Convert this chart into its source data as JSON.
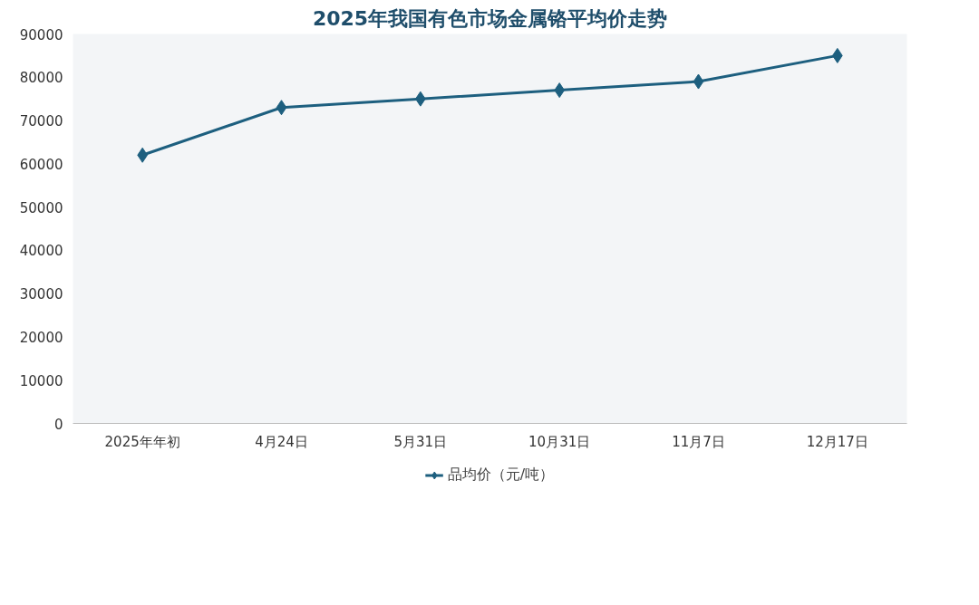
{
  "chart_data": {
    "type": "line",
    "title": "2025年我国有色市场金属铬平均价走势",
    "categories": [
      "2025年年初",
      "4月24日",
      "5月31日",
      "10月31日",
      "11月7日",
      "12月17日"
    ],
    "series": [
      {
        "name": "品均价（元/吨）",
        "color": "#1d5f7f",
        "values": [
          62000,
          73000,
          75000,
          77000,
          79000,
          85000
        ]
      }
    ],
    "ylim": [
      0,
      90000
    ],
    "yticks": [
      0,
      10000,
      20000,
      30000,
      40000,
      50000,
      60000,
      70000,
      80000,
      90000
    ],
    "grid": false,
    "legend": "bottom",
    "marker": "diamond",
    "line_style": "solid"
  }
}
